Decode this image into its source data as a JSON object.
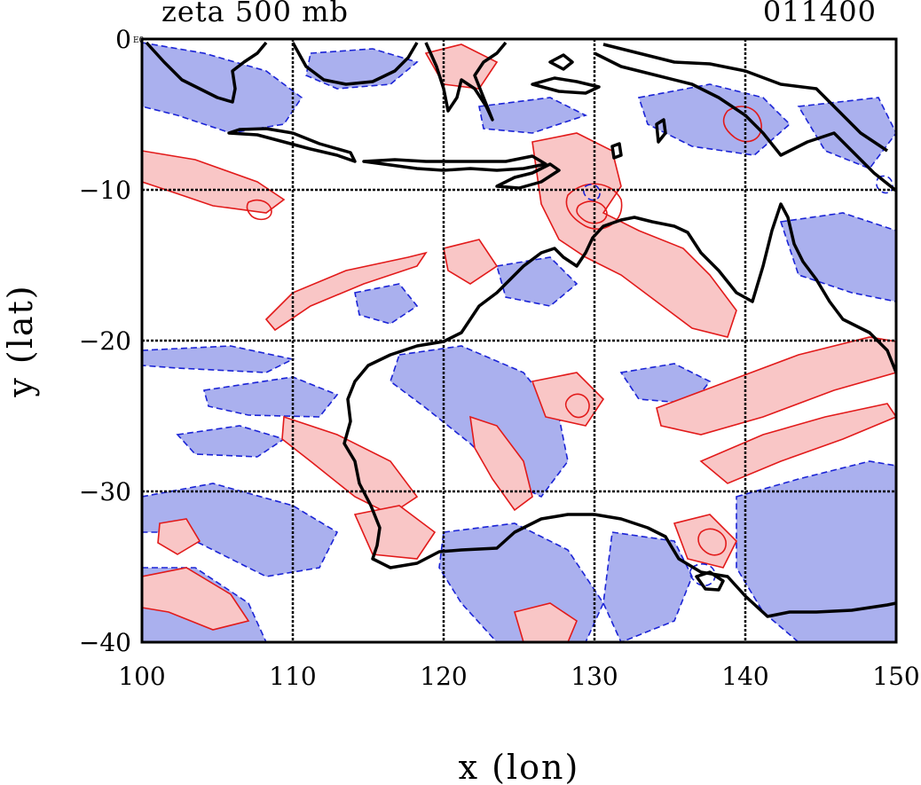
{
  "header": {
    "title": "zeta 500 mb",
    "timestamp": "011400"
  },
  "axes": {
    "xlabel": "x (lon)",
    "ylabel": "y (lat)",
    "x_ticks": [
      "100",
      "110",
      "120",
      "130",
      "140",
      "150"
    ],
    "y_ticks": [
      "0",
      "−10",
      "−20",
      "−30",
      "−40"
    ],
    "corner_label": "E0"
  },
  "map": {
    "lon_range": [
      100,
      150
    ],
    "lat_range": [
      -40,
      0
    ],
    "grid_lons": [
      110,
      120,
      130,
      140
    ],
    "grid_lats": [
      -10,
      -20,
      -30
    ],
    "positive_color": "#e21a1a",
    "positive_fill": "#f9c6c6",
    "negative_color": "#1b24d6",
    "negative_fill": "#aab0ee",
    "coastline_color": "#000000"
  }
}
